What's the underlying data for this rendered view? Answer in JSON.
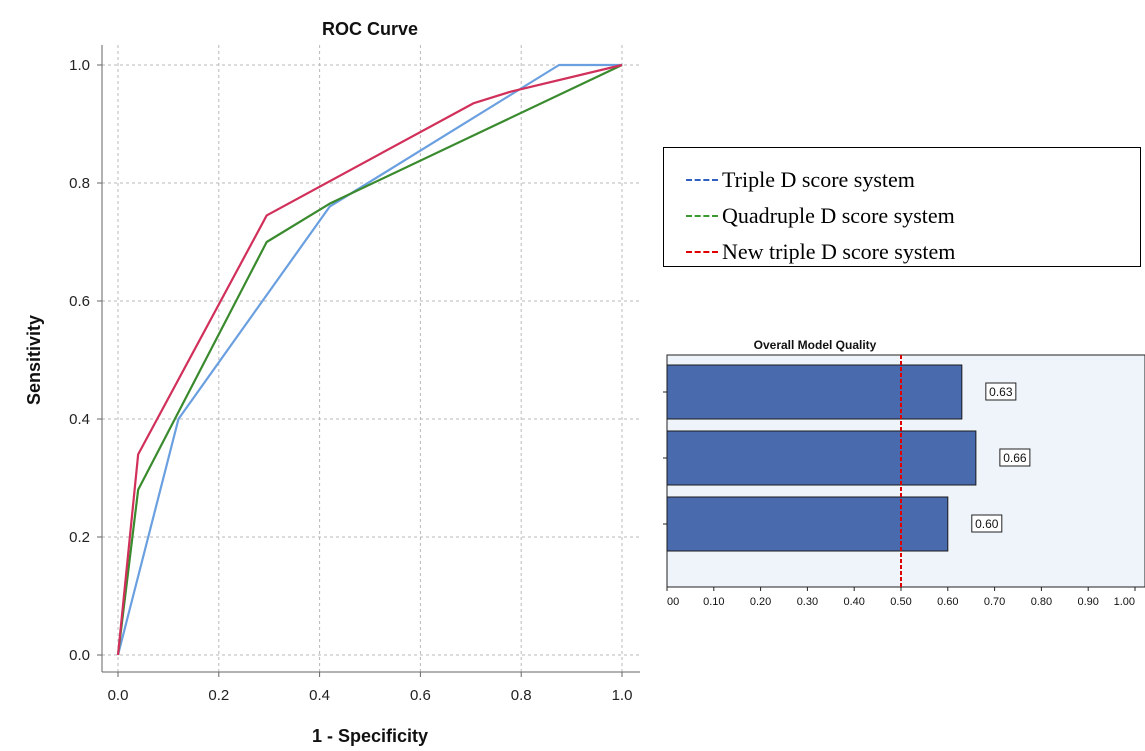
{
  "chart_data": [
    {
      "type": "line",
      "title": "ROC Curve",
      "xlabel": "1 - Specificity",
      "ylabel": "Sensitivity",
      "xlim": [
        0,
        1
      ],
      "ylim": [
        0,
        1
      ],
      "xticks": [
        "0.0",
        "0.2",
        "0.4",
        "0.6",
        "0.8",
        "1.0"
      ],
      "yticks": [
        "0.0",
        "0.2",
        "0.4",
        "0.6",
        "0.8",
        "1.0"
      ],
      "grid": true,
      "series": [
        {
          "color": "#6a9fe0",
          "x": [
            0,
            0.12,
            0.42,
            0.875,
            1.0
          ],
          "y": [
            0,
            0.4,
            0.76,
            1.0,
            1.0
          ]
        },
        {
          "color": "#3a8a2e",
          "x": [
            0,
            0.04,
            0.295,
            0.42,
            1.0
          ],
          "y": [
            0,
            0.28,
            0.7,
            0.765,
            1.0
          ]
        },
        {
          "color": "#d0305a",
          "x": [
            0,
            0.04,
            0.295,
            0.705,
            0.78,
            1.0
          ],
          "y": [
            0,
            0.34,
            0.745,
            0.935,
            0.955,
            1.0
          ]
        }
      ],
      "legend": {
        "placement": "right",
        "entries": [
          {
            "label": "Triple D score system",
            "dash": "-----",
            "color": "#3060c0"
          },
          {
            "label": "Quadruple D score system",
            "dash": "-----",
            "color": "#3a9a30"
          },
          {
            "label": "New triple D score system",
            "dash": "-----",
            "color": "#e00000"
          }
        ]
      }
    },
    {
      "type": "bar",
      "orientation": "horizontal",
      "title": "Overall Model Quality",
      "values": [
        0.63,
        0.66,
        0.6
      ],
      "value_labels": [
        "0.63",
        "0.66",
        "0.60"
      ],
      "xlim": [
        0,
        1.0
      ],
      "xticks": [
        "00",
        "0.10",
        "0.20",
        "0.30",
        "0.40",
        "0.50",
        "0.60",
        "0.70",
        "0.80",
        "0.90",
        "1.00"
      ],
      "reference_line": 0.5,
      "bar_color": "#4a6aae",
      "background_color": "#eef4fa",
      "reference_color": "#e00000"
    }
  ]
}
